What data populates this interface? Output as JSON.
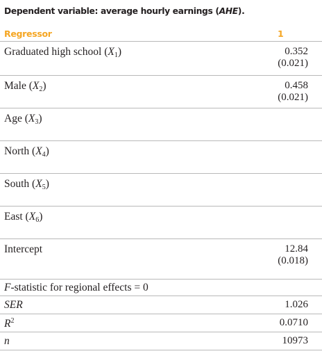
{
  "caption": {
    "prefix": "Dependent variable: average hourly earnings (",
    "abbrev": "AHE",
    "suffix": ")."
  },
  "header": {
    "regressor": "Regressor",
    "column": "1"
  },
  "rows": [
    {
      "label": "Graduated high school (",
      "var": "X",
      "sub": "1",
      "label_end": ")",
      "coef": "0.352",
      "se": "(0.021)"
    },
    {
      "label": "Male (",
      "var": "X",
      "sub": "2",
      "label_end": ")",
      "coef": "0.458",
      "se": "(0.021)"
    },
    {
      "label": "Age (",
      "var": "X",
      "sub": "3",
      "label_end": ")",
      "coef": "",
      "se": ""
    },
    {
      "label": "North (",
      "var": "X",
      "sub": "4",
      "label_end": ")",
      "coef": "",
      "se": ""
    },
    {
      "label": "South (",
      "var": "X",
      "sub": "5",
      "label_end": ")",
      "coef": "",
      "se": ""
    },
    {
      "label": "East (",
      "var": "X",
      "sub": "6",
      "label_end": ")",
      "coef": "",
      "se": ""
    },
    {
      "label": "Intercept",
      "coef": "12.84",
      "se": "(0.018)"
    }
  ],
  "stats": {
    "fstat": {
      "f": "F",
      "label": "-statistic for regional effects = 0",
      "value": ""
    },
    "ser": {
      "label": "SER",
      "value": "1.026"
    },
    "r2": {
      "label": "R",
      "sup": "2",
      "value": "0.0710"
    },
    "n": {
      "label": "n",
      "value": "10973"
    }
  }
}
